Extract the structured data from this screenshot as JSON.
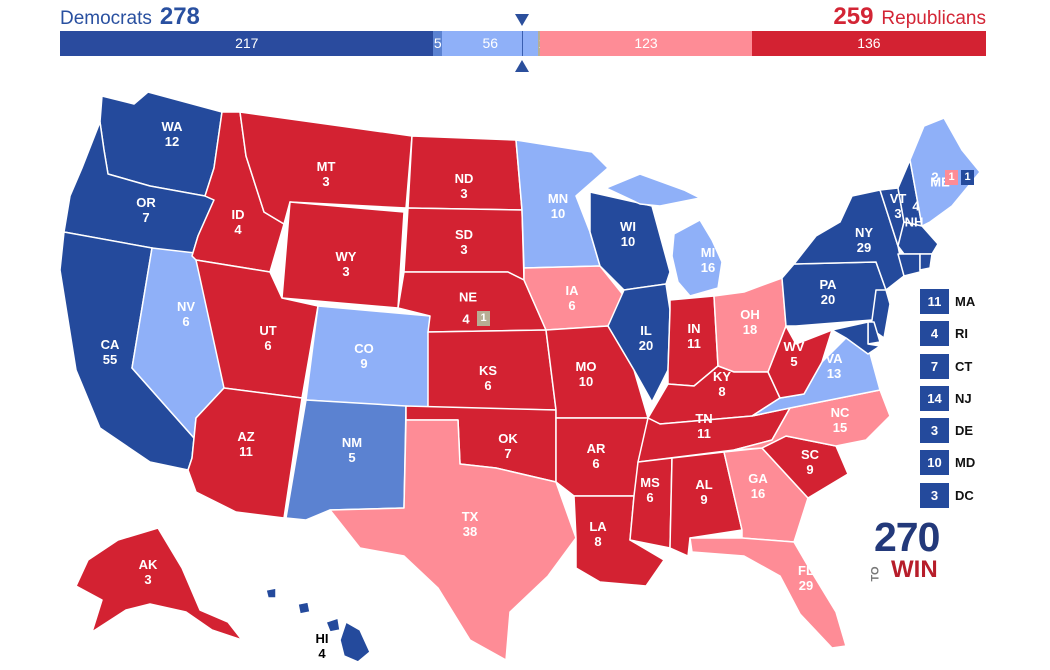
{
  "header": {
    "dem_label": "Democrats",
    "dem_total": "278",
    "rep_label": "Republicans",
    "rep_total": "259"
  },
  "bar": [
    {
      "label": "217",
      "value": 217,
      "color": "#2a4b9e"
    },
    {
      "label": "5",
      "value": 5,
      "color": "#5b82d1"
    },
    {
      "label": "56",
      "value": 56,
      "color": "#8fb0f8"
    },
    {
      "label": "1",
      "value": 1,
      "color": "#b7ae94"
    },
    {
      "label": "123",
      "value": 123,
      "color": "#fe8c96"
    },
    {
      "label": "136",
      "value": 136,
      "color": "#d32232"
    }
  ],
  "colors": {
    "solid_dem": "#244a9c",
    "likely_dem": "#5b82d1",
    "lean_dem": "#8fb0f8",
    "tossup": "#b7ae94",
    "lean_rep": "#fe8c96",
    "solid_rep": "#d32232"
  },
  "states": {
    "WA": "12",
    "OR": "7",
    "CA": "55",
    "NV": "6",
    "ID": "4",
    "MT": "3",
    "WY": "3",
    "UT": "6",
    "AZ": "11",
    "CO": "9",
    "NM": "5",
    "ND": "3",
    "SD": "3",
    "NE": "4",
    "KS": "6",
    "OK": "7",
    "TX": "38",
    "MN": "10",
    "IA": "6",
    "MO": "10",
    "AR": "6",
    "LA": "8",
    "WI": "10",
    "IL": "20",
    "MI": "16",
    "IN": "11",
    "OH": "18",
    "KY": "8",
    "TN": "11",
    "MS": "6",
    "AL": "9",
    "GA": "16",
    "FL": "29",
    "SC": "9",
    "NC": "15",
    "VA": "13",
    "WV": "5",
    "PA": "20",
    "NY": "29",
    "VT": "3",
    "NH": "4",
    "ME": "2",
    "AK": "3",
    "HI": "4"
  },
  "district_boxes": {
    "ne_cd": "1",
    "me_cd1": "1",
    "me_cd2": "1"
  },
  "small_states": [
    {
      "abbr": "MA",
      "ev": "11"
    },
    {
      "abbr": "RI",
      "ev": "4"
    },
    {
      "abbr": "CT",
      "ev": "7"
    },
    {
      "abbr": "NJ",
      "ev": "14"
    },
    {
      "abbr": "DE",
      "ev": "3"
    },
    {
      "abbr": "MD",
      "ev": "10"
    },
    {
      "abbr": "DC",
      "ev": "3"
    }
  ],
  "logo": {
    "number": "270",
    "to": "TO",
    "win": "WIN"
  }
}
